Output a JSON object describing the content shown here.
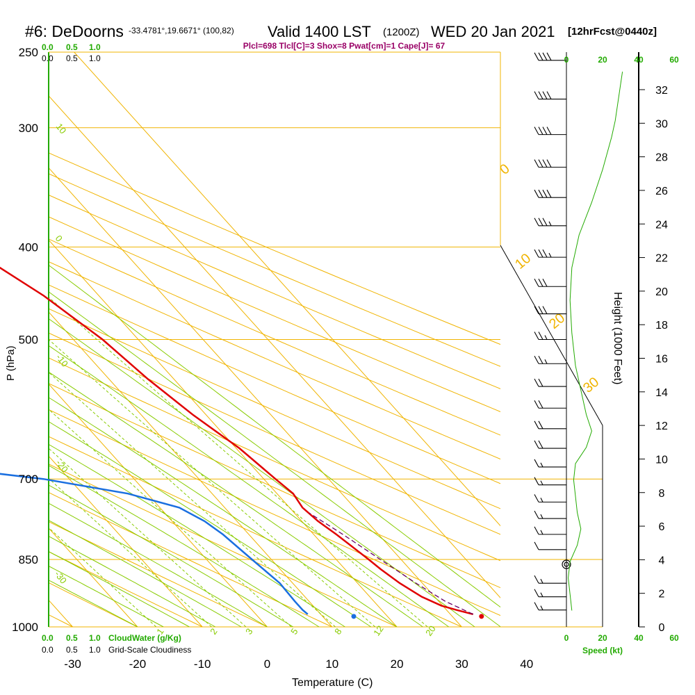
{
  "header": {
    "station": "#6: DeDoorns",
    "coords": "-33.4781°,19.6671° (100,82)",
    "valid_time": "Valid 1400 LST",
    "utc": "(1200Z)",
    "date": "WED 20 Jan 2021",
    "forecast": "[12hrFcst@0440z]",
    "indices": "Plcl=698 Tlcl[C]=3 Shox=8 Pwat[cm]=1 Cape[J]= 67"
  },
  "colors": {
    "isotherm": "#f0b400",
    "dry_adiabat": "#f0b400",
    "moist_adiabat": "#88cc00",
    "mixing_ratio": "#88cc00",
    "temperature": "#e00000",
    "dewpoint": "#1a6fe0",
    "parcel": "#660066",
    "green_label": "#22aa00",
    "index_text": "#990066"
  },
  "chart_data": {
    "type": "skew-t",
    "xlabel": "Temperature (C)",
    "ylabel": "P (hPa)",
    "ylabel_right": "Height (1000 Feet)",
    "x_ticks": [
      -30,
      -20,
      -10,
      0,
      10,
      20,
      30,
      40
    ],
    "p_ticks": [
      250,
      300,
      400,
      500,
      700,
      850,
      1000
    ],
    "height_ticks": [
      0,
      2,
      4,
      6,
      8,
      10,
      12,
      14,
      16,
      18,
      20,
      22,
      24,
      26,
      28,
      30,
      32
    ],
    "dry_adiabat_labels": [
      "10",
      "0",
      "-10",
      "-20",
      "-30"
    ],
    "moist_adiabat_labels": [
      "0",
      "10",
      "20",
      "30"
    ],
    "mixing_ratio_labels": [
      "1",
      "2",
      "3",
      "5",
      "8",
      "12",
      "20"
    ],
    "temperature_profile": [
      {
        "p": 970,
        "t": 33.5
      },
      {
        "p": 960,
        "t": 31.5
      },
      {
        "p": 950,
        "t": 29.8
      },
      {
        "p": 930,
        "t": 28.0
      },
      {
        "p": 900,
        "t": 26.5
      },
      {
        "p": 870,
        "t": 25.5
      },
      {
        "p": 850,
        "t": 25.0
      },
      {
        "p": 800,
        "t": 23.5
      },
      {
        "p": 775,
        "t": 22.5
      },
      {
        "p": 750,
        "t": 22.0
      },
      {
        "p": 725,
        "t": 22.5
      },
      {
        "p": 700,
        "t": 21.8
      },
      {
        "p": 650,
        "t": 20.5
      },
      {
        "p": 600,
        "t": 18.0
      },
      {
        "p": 550,
        "t": 16.0
      },
      {
        "p": 500,
        "t": 14.5
      },
      {
        "p": 450,
        "t": 11.5
      },
      {
        "p": 400,
        "t": 6.5
      },
      {
        "p": 350,
        "t": 0.0
      },
      {
        "p": 300,
        "t": -9.0
      },
      {
        "p": 260,
        "t": -18.0
      }
    ],
    "dewpoint_profile": [
      {
        "p": 970,
        "t": 8.0
      },
      {
        "p": 960,
        "t": 7.8
      },
      {
        "p": 940,
        "t": 7.8
      },
      {
        "p": 900,
        "t": 8.0
      },
      {
        "p": 850,
        "t": 7.0
      },
      {
        "p": 800,
        "t": 6.0
      },
      {
        "p": 775,
        "t": 5.0
      },
      {
        "p": 750,
        "t": 3.0
      },
      {
        "p": 725,
        "t": -3.0
      },
      {
        "p": 700,
        "t": -14.0
      },
      {
        "p": 680,
        "t": -28.0
      },
      {
        "p": 670,
        "t": -37.0
      },
      {
        "p": 650,
        "t": -38.0
      },
      {
        "p": 620,
        "t": -38.0
      },
      {
        "p": 600,
        "t": -36.0
      },
      {
        "p": 550,
        "t": -39.0
      },
      {
        "p": 500,
        "t": -42.0
      },
      {
        "p": 450,
        "t": -44.0
      },
      {
        "p": 400,
        "t": -46.0
      },
      {
        "p": 350,
        "t": -52.0
      },
      {
        "p": 300,
        "t": -60.0
      },
      {
        "p": 255,
        "t": -68.0
      }
    ],
    "parcel_profile": [
      {
        "p": 970,
        "t": 33.5
      },
      {
        "p": 940,
        "t": 31.0
      },
      {
        "p": 900,
        "t": 29.0
      },
      {
        "p": 850,
        "t": 26.8
      },
      {
        "p": 800,
        "t": 24.5
      },
      {
        "p": 760,
        "t": 22.3
      }
    ],
    "surface_temperature": 34.5,
    "surface_dewpoint": 14.8,
    "surface_pressure": 975,
    "wind_barbs": [
      {
        "p": 255,
        "kt": 40
      },
      {
        "p": 280,
        "kt": 40
      },
      {
        "p": 305,
        "kt": 40
      },
      {
        "p": 330,
        "kt": 40
      },
      {
        "p": 355,
        "kt": 40
      },
      {
        "p": 380,
        "kt": 35
      },
      {
        "p": 410,
        "kt": 35
      },
      {
        "p": 440,
        "kt": 30
      },
      {
        "p": 470,
        "kt": 30
      },
      {
        "p": 500,
        "kt": 25
      },
      {
        "p": 530,
        "kt": 25
      },
      {
        "p": 560,
        "kt": 20
      },
      {
        "p": 590,
        "kt": 20
      },
      {
        "p": 620,
        "kt": 20
      },
      {
        "p": 650,
        "kt": 20
      },
      {
        "p": 680,
        "kt": 15
      },
      {
        "p": 710,
        "kt": 15
      },
      {
        "p": 740,
        "kt": 15
      },
      {
        "p": 770,
        "kt": 15
      },
      {
        "p": 800,
        "kt": 15
      },
      {
        "p": 830,
        "kt": 10
      },
      {
        "p": 860,
        "kt": 0
      },
      {
        "p": 900,
        "kt": 15
      },
      {
        "p": 930,
        "kt": 15
      },
      {
        "p": 960,
        "kt": 15
      }
    ],
    "speed_profile": [
      {
        "ft": 1.0,
        "kt": 3
      },
      {
        "ft": 2.0,
        "kt": 2
      },
      {
        "ft": 3.0,
        "kt": 1
      },
      {
        "ft": 4.0,
        "kt": 2
      },
      {
        "ft": 5.0,
        "kt": 6
      },
      {
        "ft": 6.0,
        "kt": 8
      },
      {
        "ft": 7.0,
        "kt": 6
      },
      {
        "ft": 8.0,
        "kt": 5
      },
      {
        "ft": 9.0,
        "kt": 4
      },
      {
        "ft": 10.0,
        "kt": 5
      },
      {
        "ft": 11.0,
        "kt": 11
      },
      {
        "ft": 12.0,
        "kt": 14
      },
      {
        "ft": 13.0,
        "kt": 11
      },
      {
        "ft": 14.0,
        "kt": 9
      },
      {
        "ft": 16.0,
        "kt": 5
      },
      {
        "ft": 18.0,
        "kt": 3
      },
      {
        "ft": 20.0,
        "kt": 2
      },
      {
        "ft": 22.0,
        "kt": 3
      },
      {
        "ft": 24.0,
        "kt": 7
      },
      {
        "ft": 26.0,
        "kt": 14
      },
      {
        "ft": 28.0,
        "kt": 20
      },
      {
        "ft": 30.0,
        "kt": 25
      },
      {
        "ft": 31.0,
        "kt": 27
      },
      {
        "ft": 32.5,
        "kt": 29
      },
      {
        "ft": 34.0,
        "kt": 31
      }
    ],
    "cloud_scale_top_green": [
      "0.0",
      "0.5",
      "1.0"
    ],
    "cloud_scale_top_black": [
      "0.0",
      "0.5",
      "1.0"
    ],
    "cloud_scale_bottom_green": [
      "0.0",
      "0.5",
      "1.0"
    ],
    "cloud_scale_bottom_black": [
      "0.0",
      "0.5",
      "1.0"
    ],
    "cloudwater_label": "CloudWater (g/Kg)",
    "cloudiness_label": "Grid-Scale Cloudiness",
    "speed_label": "Speed (kt)",
    "speed_ticks_top": [
      "0",
      "20",
      "40",
      "60"
    ],
    "speed_ticks_bottom_black": [
      "0",
      "20",
      "40"
    ],
    "speed_ticks_bottom_green": [
      "60"
    ]
  }
}
